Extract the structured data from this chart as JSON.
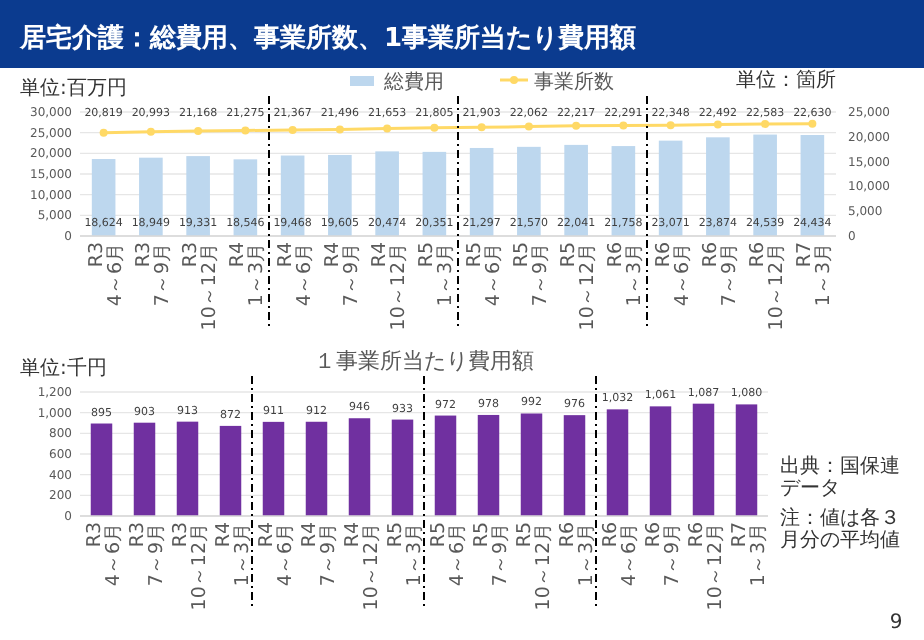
{
  "chart_data": [
    {
      "type": "bar",
      "title": "居宅介護：総費用、事業所数、1事業所当たり費用額",
      "ylabel": "単位:百万円",
      "y2label": "単位：箇所",
      "categories": [
        "R3\n4～6月",
        "R3\n7～9月",
        "R3\n10～12月",
        "R4\n1～3月",
        "R4\n4～6月",
        "R4\n7～9月",
        "R4\n10～12月",
        "R5\n1～3月",
        "R5\n4～6月",
        "R5\n7～9月",
        "R5\n10～12月",
        "R6\n1～3月",
        "R6\n4～6月",
        "R6\n7～9月",
        "R6\n10～12月",
        "R7\n1～3月"
      ],
      "series": [
        {
          "name": "総費用",
          "type": "bar",
          "color": "#bdd7ee",
          "values": [
            18624,
            18949,
            19331,
            18546,
            19468,
            19605,
            20474,
            20351,
            21297,
            21570,
            22041,
            21758,
            23071,
            23874,
            24539,
            24434
          ],
          "value_labels": [
            "18,624",
            "18,949",
            "19,331",
            "18,546",
            "19,468",
            "19,605",
            "20,474",
            "20,351",
            "21,297",
            "21,570",
            "22,041",
            "21,758",
            "23,071",
            "23,874",
            "24,539",
            "24,434"
          ]
        },
        {
          "name": "事業所数",
          "type": "line",
          "axis": "y2",
          "color": "#ffd966",
          "marker": "circle",
          "values": [
            20819,
            20993,
            21168,
            21275,
            21367,
            21496,
            21653,
            21805,
            21903,
            22062,
            22217,
            22291,
            22348,
            22492,
            22583,
            22630
          ],
          "value_labels": [
            "20,819",
            "20,993",
            "21,168",
            "21,275",
            "21,367",
            "21,496",
            "21,653",
            "21,805",
            "21,903",
            "22,062",
            "22,217",
            "22,291",
            "22,348",
            "22,492",
            "22,583",
            "22,630"
          ]
        }
      ],
      "ylim": [
        0,
        30000
      ],
      "yticks": [
        {
          "value": 0,
          "label": "0"
        },
        {
          "value": 5000,
          "label": "5,000"
        },
        {
          "value": 10000,
          "label": "10,000"
        },
        {
          "value": 15000,
          "label": "15,000"
        },
        {
          "value": 20000,
          "label": "20,000"
        },
        {
          "value": 25000,
          "label": "25,000"
        },
        {
          "value": 30000,
          "label": "30,000"
        }
      ],
      "y2lim": [
        0,
        25000
      ],
      "y2ticks": [
        {
          "value": 0,
          "label": "0"
        },
        {
          "value": 5000,
          "label": "5,000"
        },
        {
          "value": 10000,
          "label": "10,000"
        },
        {
          "value": 15000,
          "label": "15,000"
        },
        {
          "value": 20000,
          "label": "20,000"
        },
        {
          "value": 25000,
          "label": "25,000"
        }
      ],
      "grid": "y",
      "legend": "top"
    },
    {
      "type": "bar",
      "title": "１事業所当たり費用額",
      "ylabel": "単位:千円",
      "categories": [
        "R3\n4～6月",
        "R3\n7～9月",
        "R3\n10～12月",
        "R4\n1～3月",
        "R4\n4～6月",
        "R4\n7～9月",
        "R4\n10～12月",
        "R5\n1～3月",
        "R5\n4～6月",
        "R5\n7～9月",
        "R5\n10～12月",
        "R6\n1～3月",
        "R6\n4～6月",
        "R6\n7～9月",
        "R6\n10～12月",
        "R7\n1～3月"
      ],
      "values": [
        895,
        903,
        913,
        872,
        911,
        912,
        946,
        933,
        972,
        978,
        992,
        976,
        1032,
        1061,
        1087,
        1080
      ],
      "value_labels": [
        "895",
        "903",
        "913",
        "872",
        "911",
        "912",
        "946",
        "933",
        "972",
        "978",
        "992",
        "976",
        "1,032",
        "1,061",
        "1,087",
        "1,080"
      ],
      "color": "#7030a0",
      "ylim": [
        0,
        1200
      ],
      "yticks": [
        {
          "value": 0,
          "label": "0"
        },
        {
          "value": 200,
          "label": "200"
        },
        {
          "value": 400,
          "label": "400"
        },
        {
          "value": 600,
          "label": "600"
        },
        {
          "value": 800,
          "label": "800"
        },
        {
          "value": 1000,
          "label": "1,000"
        },
        {
          "value": 1200,
          "label": "1,200"
        }
      ],
      "grid": "y",
      "annotations": [
        "出典：国保連データ",
        "注：値は各３月分の平均値",
        "9"
      ]
    }
  ]
}
